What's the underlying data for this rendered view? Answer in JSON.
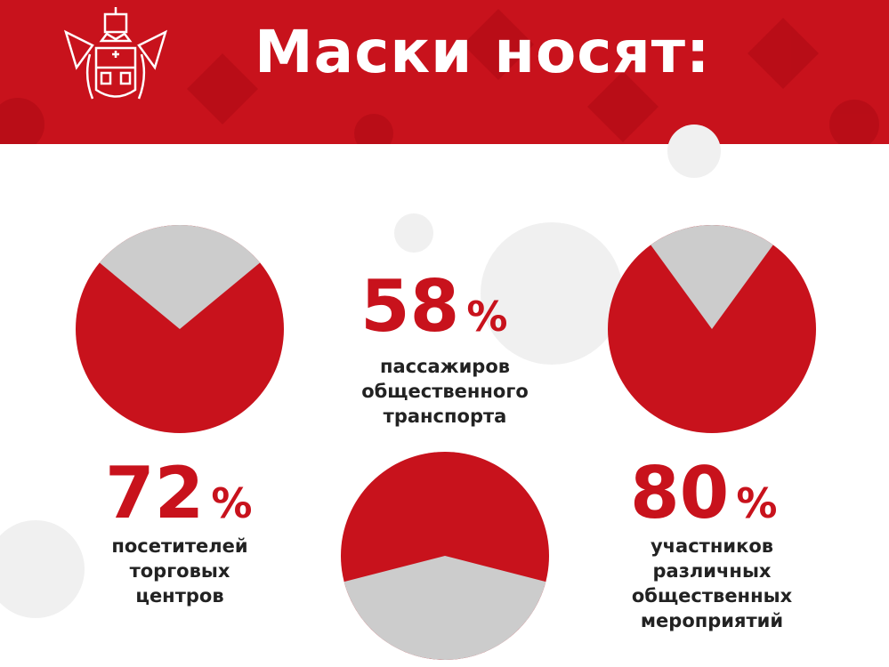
{
  "header": {
    "title": "Маски носят:"
  },
  "colors": {
    "accent": "#c8121c",
    "rest": "#cccccc"
  },
  "chart_data": {
    "type": "pie",
    "title": "Маски носят:",
    "series": [
      {
        "value": 72,
        "value_label": "72",
        "unit": "%",
        "label_lines": [
          "посетителей",
          "торговых",
          "центров"
        ]
      },
      {
        "value": 58,
        "value_label": "58",
        "unit": "%",
        "label_lines": [
          "пассажиров",
          "общественного",
          "транспорта"
        ]
      },
      {
        "value": 80,
        "value_label": "80",
        "unit": "%",
        "label_lines": [
          "участников",
          "различных",
          "общественных",
          "мероприятий"
        ]
      }
    ]
  }
}
